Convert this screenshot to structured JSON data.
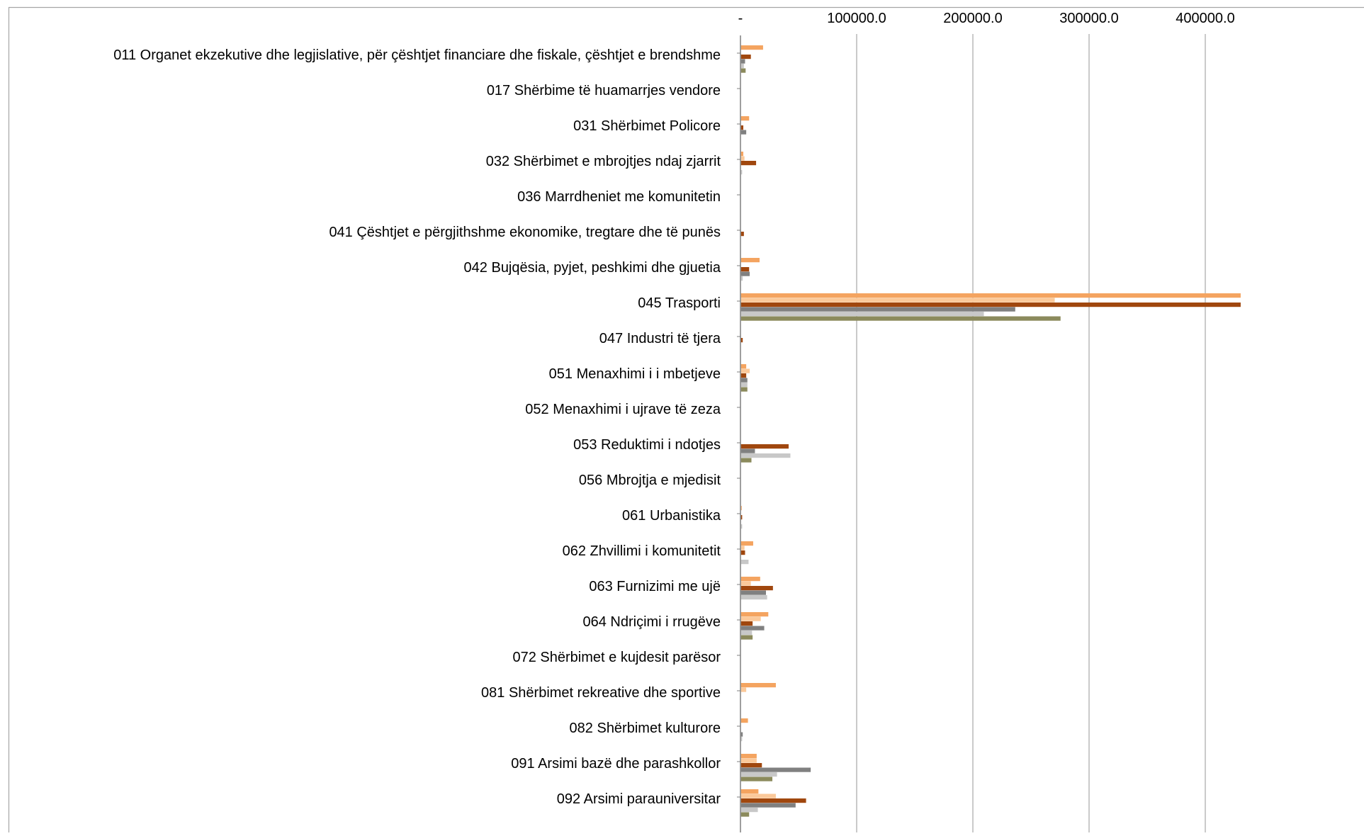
{
  "chart_data": {
    "type": "bar",
    "orientation": "horizontal",
    "x_ticks": [
      "-",
      "100000.0",
      "200000.0",
      "300000.0",
      "400000.0"
    ],
    "x_tick_values": [
      0,
      100000,
      200000,
      300000,
      400000
    ],
    "xlim": [
      0,
      430000
    ],
    "grid": "vertical",
    "categories": [
      "011 Organet ekzekutive dhe legjislative, për çështjet financiare dhe fiskale, çështjet e brendshme",
      "017 Shërbime të  huamarrjes vendore",
      "031 Shërbimet Policore",
      "032 Shërbimet e mbrojtjes ndaj zjarrit",
      "036 Marrdheniet me komunitetin",
      "041 Çështjet e përgjithshme ekonomike, tregtare dhe të punës",
      "042 Bujqësia, pyjet, peshkimi dhe gjuetia",
      "045 Trasporti",
      "047 Industri të tjera",
      "051 Menaxhimi i i mbetjeve",
      "052 Menaxhimi i ujrave të zeza",
      "053 Reduktimi i ndotjes",
      "056 Mbrojtja e mjedisit",
      "061 Urbanistika",
      "062 Zhvillimi i komunitetit",
      "063 Furnizimi me ujë",
      "064 Ndriçimi i rrugëve",
      "072 Shërbimet e kujdesit parësor",
      "081 Shërbimet rekreative dhe sportive",
      "082 Shërbimet kulturore",
      "091 Arsimi bazë dhe parashkollor",
      "092 Arsimi  parauniversitar"
    ],
    "series": [
      {
        "color": "#f4a460",
        "values": [
          19000,
          0,
          7000,
          2000,
          0,
          0,
          16000,
          430000,
          0,
          4500,
          0,
          0,
          0,
          500,
          10500,
          16500,
          23500,
          0,
          30000,
          6000,
          13500,
          15000
        ]
      },
      {
        "color": "#fbc99a",
        "values": [
          0,
          0,
          0,
          3000,
          0,
          0,
          0,
          270000,
          0,
          7500,
          0,
          0,
          0,
          0,
          3000,
          8500,
          17000,
          0,
          4500,
          0,
          13500,
          30000
        ]
      },
      {
        "color": "#a0470e",
        "values": [
          8500,
          0,
          2000,
          13000,
          0,
          2500,
          7000,
          430000,
          1500,
          4500,
          0,
          41000,
          0,
          1000,
          3500,
          27500,
          10000,
          0,
          0,
          0,
          18000,
          56000
        ]
      },
      {
        "color": "#808080",
        "values": [
          3500,
          0,
          4500,
          0,
          0,
          0,
          7500,
          236000,
          0,
          5500,
          0,
          12000,
          0,
          0,
          0,
          21500,
          20000,
          0,
          0,
          1500,
          60000,
          47000
        ]
      },
      {
        "color": "#c8c8c8",
        "values": [
          2500,
          0,
          0,
          1000,
          0,
          0,
          1500,
          209000,
          0,
          5500,
          0,
          42500,
          0,
          1000,
          6500,
          22500,
          9500,
          0,
          0,
          1000,
          31000,
          14500
        ]
      },
      {
        "color": "#8b8a5c",
        "values": [
          4000,
          0,
          0,
          0,
          0,
          0,
          0,
          275000,
          0,
          5500,
          0,
          9000,
          0,
          0,
          0,
          0,
          10000,
          0,
          0,
          0,
          27000,
          7000
        ]
      }
    ]
  }
}
